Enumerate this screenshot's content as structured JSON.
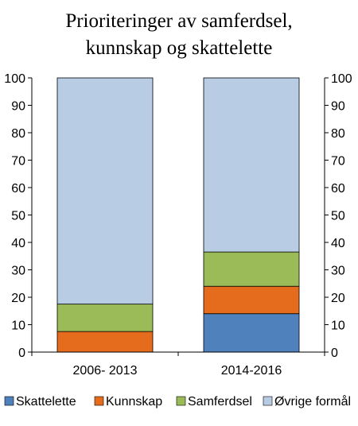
{
  "chart_data": {
    "type": "bar",
    "stacked": true,
    "title_lines": [
      "Prioriteringer av samferdsel,",
      "kunnskap og skattelette"
    ],
    "categories": [
      "2006- 2013",
      "2014-2016"
    ],
    "series": [
      {
        "name": "Skattelette",
        "values": [
          0,
          14
        ],
        "color": "#4F81BD"
      },
      {
        "name": "Kunnskap",
        "values": [
          7.5,
          10
        ],
        "color": "#E46C1C"
      },
      {
        "name": "Samferdsel",
        "values": [
          10,
          12.5
        ],
        "color": "#9BBB59"
      },
      {
        "name": "Øvrige formål",
        "values": [
          82.5,
          63.5
        ],
        "color": "#B8CCE4"
      }
    ],
    "ylim": [
      0,
      100
    ],
    "yticks": [
      0,
      10,
      20,
      30,
      40,
      50,
      60,
      70,
      80,
      90,
      100
    ],
    "y_axis_both_sides": true,
    "grid": false,
    "legend_position": "bottom"
  }
}
